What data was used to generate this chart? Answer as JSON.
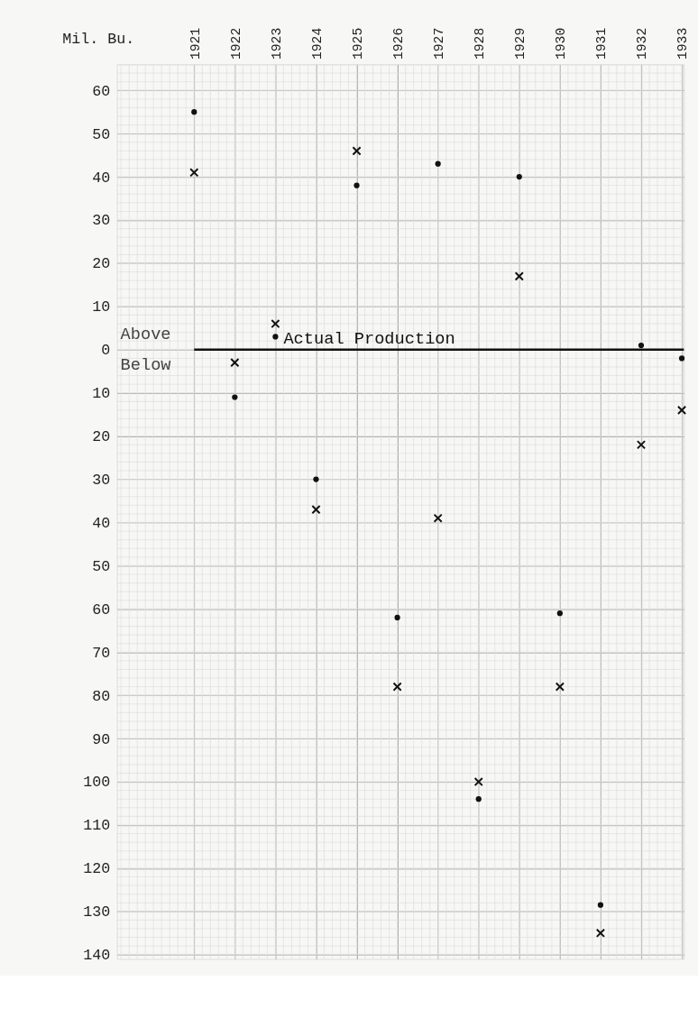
{
  "chart_data": {
    "type": "scatter",
    "ylabel": "Mil. Bu.",
    "categories": [
      "1921",
      "1922",
      "1923",
      "1924",
      "1925",
      "1926",
      "1927",
      "1928",
      "1929",
      "1930",
      "1931",
      "1932",
      "1933"
    ],
    "series": [
      {
        "color": "#111111",
        "marker": "circle",
        "values": [
          55,
          -11,
          3,
          -30,
          38,
          -62,
          43,
          -104,
          40,
          -61,
          -128.5,
          1,
          -2
        ]
      },
      {
        "color": "#111111",
        "marker": "cross",
        "values": [
          41,
          -3,
          6,
          -37,
          46,
          -78,
          -39,
          -100,
          17,
          -78,
          -135,
          -22,
          -14
        ]
      }
    ],
    "ylim": [
      -141,
      66
    ],
    "yticks": [
      60,
      50,
      40,
      30,
      20,
      10,
      0,
      {
        "value": -10,
        "label": "10"
      },
      {
        "value": -20,
        "label": "20"
      },
      {
        "value": -30,
        "label": "30"
      },
      {
        "value": -40,
        "label": "40"
      },
      {
        "value": -50,
        "label": "50"
      },
      {
        "value": -60,
        "label": "60"
      },
      {
        "value": -70,
        "label": "70"
      },
      {
        "value": -80,
        "label": "80"
      },
      {
        "value": -90,
        "label": "90"
      },
      {
        "value": -100,
        "label": "100"
      },
      {
        "value": -110,
        "label": "110"
      },
      {
        "value": -120,
        "label": "120"
      },
      {
        "value": -130,
        "label": "130"
      },
      {
        "value": -140,
        "label": "140"
      }
    ],
    "ref_lines": [
      {
        "axis": "y",
        "value": 0,
        "label": "Actual Production",
        "color": "#111111"
      }
    ],
    "annotations": [
      "Above",
      "Below"
    ],
    "grid": true
  }
}
